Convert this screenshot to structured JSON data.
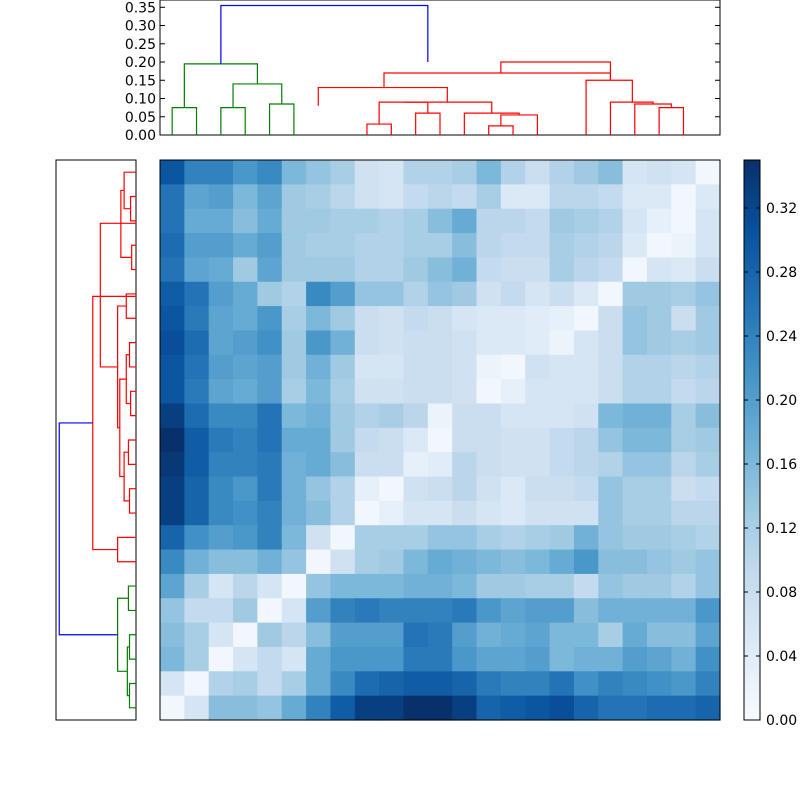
{
  "chart_data": [
    {
      "type": "dendrogram",
      "orientation": "top",
      "ylim": [
        0,
        0.37
      ],
      "yticks": [
        "0.00",
        "0.05",
        "0.10",
        "0.15",
        "0.20",
        "0.25",
        "0.30",
        "0.35"
      ],
      "leaves": 23,
      "colors": {
        "left_cluster": "#008000",
        "right_cluster": "#ff0000",
        "root": "#0000ff"
      },
      "links": [
        {
          "l": 0.5,
          "r": 1.5,
          "hl": 0,
          "hr": 0,
          "h": 0.075,
          "c": "green"
        },
        {
          "l": 2.5,
          "r": 3.5,
          "hl": 0,
          "hr": 0,
          "h": 0.075,
          "c": "green"
        },
        {
          "l": 4.5,
          "r": 5.5,
          "hl": 0,
          "hr": 0,
          "h": 0.085,
          "c": "green"
        },
        {
          "l": 3.0,
          "r": 5.0,
          "hl": 0.075,
          "hr": 0.085,
          "h": 0.14,
          "c": "green"
        },
        {
          "l": 1.0,
          "r": 4.0,
          "hl": 0.075,
          "hr": 0.14,
          "h": 0.195,
          "c": "green"
        },
        {
          "l": 8.5,
          "r": 9.5,
          "hl": 0,
          "hr": 0,
          "h": 0.03,
          "c": "red"
        },
        {
          "l": 10.5,
          "r": 11.5,
          "hl": 0,
          "hr": 0,
          "h": 0.06,
          "c": "red"
        },
        {
          "l": 9.0,
          "r": 11.0,
          "hl": 0.03,
          "hr": 0.06,
          "h": 0.09,
          "c": "red"
        },
        {
          "l": 13.5,
          "r": 14.5,
          "hl": 0,
          "hr": 0,
          "h": 0.025,
          "c": "red"
        },
        {
          "l": 14.0,
          "r": 15.5,
          "hl": 0.025,
          "hr": 0,
          "h": 0.055,
          "c": "red"
        },
        {
          "l": 12.5,
          "r": 14.75,
          "hl": 0,
          "hr": 0.055,
          "h": 0.06,
          "c": "red"
        },
        {
          "l": 10.0,
          "r": 13.625,
          "hl": 0.09,
          "hr": 0.06,
          "h": 0.09,
          "c": "red"
        },
        {
          "l": 6.5,
          "r": 11.8,
          "hl": 0.08,
          "hr": 0.09,
          "h": 0.13,
          "c": "red"
        },
        {
          "l": 20.5,
          "r": 21.5,
          "hl": 0,
          "hr": 0,
          "h": 0.075,
          "c": "red"
        },
        {
          "l": 19.5,
          "r": 21.0,
          "hl": 0,
          "hr": 0.075,
          "h": 0.085,
          "c": "red"
        },
        {
          "l": 18.5,
          "r": 20.25,
          "hl": 0,
          "hr": 0.085,
          "h": 0.09,
          "c": "red"
        },
        {
          "l": 17.5,
          "r": 19.4,
          "hl": 0,
          "hr": 0.09,
          "h": 0.15,
          "c": "red"
        },
        {
          "l": 9.2,
          "r": 18.5,
          "hl": 0.13,
          "hr": 0.15,
          "h": 0.17,
          "c": "red"
        },
        {
          "l": 14.0,
          "r": 18.5,
          "hl": 0.17,
          "hr": 0.15,
          "h": 0.2,
          "c": "red"
        },
        {
          "l": 2.5,
          "r": 11.0,
          "hl": 0.195,
          "hr": 0.2,
          "h": 0.355,
          "c": "blue"
        }
      ]
    },
    {
      "type": "dendrogram",
      "orientation": "left",
      "leaves": 23,
      "links": [
        {
          "a": 0.5,
          "b": 1.5,
          "h": 0.03,
          "c": "green"
        },
        {
          "a": 2.5,
          "b": 3.5,
          "h": 0.03,
          "c": "green"
        },
        {
          "a": 1.0,
          "b": 3.0,
          "h": 0.04,
          "c": "green"
        },
        {
          "a": 4.5,
          "b": 5.5,
          "h": 0.035,
          "c": "green"
        },
        {
          "a": 2.0,
          "b": 5.0,
          "h": 0.085,
          "c": "green"
        },
        {
          "a": 6.5,
          "b": 7.5,
          "h": 0.085,
          "c": "red"
        },
        {
          "a": 8.5,
          "b": 9.5,
          "h": 0.03,
          "c": "red"
        },
        {
          "a": 10.5,
          "b": 11.5,
          "h": 0.035,
          "c": "red"
        },
        {
          "a": 9.0,
          "b": 11.0,
          "h": 0.055,
          "c": "red"
        },
        {
          "a": 12.5,
          "b": 13.5,
          "h": 0.025,
          "c": "red"
        },
        {
          "a": 14.5,
          "b": 15.5,
          "h": 0.03,
          "c": "red"
        },
        {
          "a": 13.0,
          "b": 15.0,
          "h": 0.045,
          "c": "red"
        },
        {
          "a": 10.0,
          "b": 14.0,
          "h": 0.075,
          "c": "red"
        },
        {
          "a": 16.5,
          "b": 17.5,
          "h": 0.045,
          "c": "red"
        },
        {
          "a": 12.0,
          "b": 17.0,
          "h": 0.085,
          "c": "red"
        },
        {
          "a": 18.5,
          "b": 19.5,
          "h": 0.02,
          "c": "red"
        },
        {
          "a": 20.5,
          "b": 21.5,
          "h": 0.025,
          "c": "red"
        },
        {
          "a": 21.0,
          "b": 22.5,
          "h": 0.055,
          "c": "red"
        },
        {
          "a": 19.0,
          "b": 21.75,
          "h": 0.07,
          "c": "red"
        },
        {
          "a": 14.5,
          "b": 20.4,
          "h": 0.165,
          "c": "red"
        },
        {
          "a": 7.0,
          "b": 17.4,
          "h": 0.2,
          "c": "red"
        },
        {
          "a": 3.5,
          "b": 12.2,
          "h": 0.355,
          "c": "blue"
        }
      ]
    },
    {
      "type": "heatmap",
      "rows": 23,
      "cols": 23,
      "colormap": "Blues",
      "vmin": 0,
      "vmax": 0.35,
      "values": [
        [
          0.3,
          0.24,
          0.24,
          0.21,
          0.23,
          0.16,
          0.14,
          0.12,
          0.07,
          0.06,
          0.11,
          0.11,
          0.12,
          0.16,
          0.11,
          0.08,
          0.11,
          0.13,
          0.15,
          0.06,
          0.07,
          0.06,
          0.01
        ],
        [
          0.26,
          0.19,
          0.2,
          0.16,
          0.19,
          0.13,
          0.12,
          0.1,
          0.07,
          0.06,
          0.09,
          0.1,
          0.09,
          0.12,
          0.05,
          0.05,
          0.1,
          0.1,
          0.09,
          0.05,
          0.05,
          0.01,
          0.05
        ],
        [
          0.26,
          0.18,
          0.18,
          0.15,
          0.18,
          0.13,
          0.13,
          0.12,
          0.12,
          0.11,
          0.12,
          0.15,
          0.18,
          0.1,
          0.1,
          0.09,
          0.13,
          0.12,
          0.11,
          0.06,
          0.03,
          0.01,
          0.06
        ],
        [
          0.27,
          0.2,
          0.2,
          0.18,
          0.2,
          0.13,
          0.12,
          0.12,
          0.11,
          0.11,
          0.12,
          0.12,
          0.15,
          0.1,
          0.09,
          0.09,
          0.12,
          0.11,
          0.1,
          0.05,
          0.01,
          0.02,
          0.06
        ],
        [
          0.26,
          0.19,
          0.18,
          0.13,
          0.19,
          0.13,
          0.13,
          0.13,
          0.11,
          0.11,
          0.13,
          0.15,
          0.17,
          0.09,
          0.08,
          0.08,
          0.12,
          0.1,
          0.09,
          0.01,
          0.06,
          0.05,
          0.08
        ],
        [
          0.29,
          0.26,
          0.2,
          0.18,
          0.13,
          0.11,
          0.23,
          0.2,
          0.14,
          0.14,
          0.11,
          0.14,
          0.13,
          0.07,
          0.09,
          0.06,
          0.08,
          0.05,
          0.01,
          0.13,
          0.13,
          0.12,
          0.14
        ],
        [
          0.3,
          0.25,
          0.19,
          0.18,
          0.21,
          0.12,
          0.16,
          0.13,
          0.08,
          0.07,
          0.09,
          0.08,
          0.06,
          0.05,
          0.05,
          0.04,
          0.03,
          0.01,
          0.08,
          0.14,
          0.13,
          0.08,
          0.13
        ],
        [
          0.31,
          0.27,
          0.19,
          0.2,
          0.22,
          0.13,
          0.21,
          0.17,
          0.08,
          0.07,
          0.08,
          0.08,
          0.07,
          0.05,
          0.05,
          0.04,
          0.02,
          0.06,
          0.08,
          0.14,
          0.13,
          0.12,
          0.13
        ],
        [
          0.3,
          0.26,
          0.2,
          0.19,
          0.2,
          0.13,
          0.17,
          0.13,
          0.06,
          0.06,
          0.08,
          0.08,
          0.07,
          0.02,
          0.01,
          0.07,
          0.06,
          0.06,
          0.08,
          0.11,
          0.11,
          0.1,
          0.11
        ],
        [
          0.3,
          0.25,
          0.19,
          0.18,
          0.2,
          0.12,
          0.16,
          0.12,
          0.07,
          0.07,
          0.08,
          0.08,
          0.07,
          0.01,
          0.03,
          0.06,
          0.06,
          0.06,
          0.08,
          0.11,
          0.11,
          0.09,
          0.1
        ],
        [
          0.33,
          0.27,
          0.23,
          0.23,
          0.26,
          0.16,
          0.17,
          0.13,
          0.11,
          0.12,
          0.1,
          0.02,
          0.08,
          0.08,
          0.06,
          0.06,
          0.06,
          0.07,
          0.16,
          0.17,
          0.17,
          0.12,
          0.15
        ],
        [
          0.35,
          0.29,
          0.25,
          0.24,
          0.26,
          0.18,
          0.18,
          0.13,
          0.09,
          0.08,
          0.05,
          0.01,
          0.08,
          0.08,
          0.07,
          0.07,
          0.09,
          0.1,
          0.14,
          0.16,
          0.16,
          0.12,
          0.13
        ],
        [
          0.34,
          0.29,
          0.24,
          0.24,
          0.25,
          0.17,
          0.18,
          0.15,
          0.08,
          0.08,
          0.03,
          0.04,
          0.1,
          0.08,
          0.07,
          0.07,
          0.09,
          0.1,
          0.11,
          0.14,
          0.14,
          0.1,
          0.12
        ],
        [
          0.33,
          0.28,
          0.23,
          0.21,
          0.25,
          0.17,
          0.14,
          0.11,
          0.03,
          0.01,
          0.07,
          0.08,
          0.1,
          0.07,
          0.05,
          0.08,
          0.08,
          0.09,
          0.14,
          0.12,
          0.12,
          0.08,
          0.09
        ],
        [
          0.33,
          0.28,
          0.23,
          0.22,
          0.24,
          0.17,
          0.15,
          0.11,
          0.01,
          0.03,
          0.06,
          0.06,
          0.08,
          0.06,
          0.05,
          0.07,
          0.07,
          0.07,
          0.14,
          0.12,
          0.12,
          0.1,
          0.1
        ],
        [
          0.28,
          0.22,
          0.2,
          0.21,
          0.24,
          0.16,
          0.07,
          0.01,
          0.12,
          0.12,
          0.12,
          0.14,
          0.14,
          0.12,
          0.11,
          0.12,
          0.13,
          0.17,
          0.14,
          0.13,
          0.13,
          0.12,
          0.11
        ],
        [
          0.23,
          0.17,
          0.15,
          0.15,
          0.17,
          0.14,
          0.01,
          0.07,
          0.12,
          0.13,
          0.16,
          0.18,
          0.17,
          0.16,
          0.15,
          0.16,
          0.18,
          0.21,
          0.15,
          0.15,
          0.14,
          0.13,
          0.14
        ],
        [
          0.19,
          0.12,
          0.06,
          0.1,
          0.06,
          0.01,
          0.14,
          0.16,
          0.16,
          0.16,
          0.17,
          0.17,
          0.16,
          0.13,
          0.13,
          0.12,
          0.12,
          0.09,
          0.14,
          0.13,
          0.13,
          0.11,
          0.14
        ],
        [
          0.14,
          0.09,
          0.09,
          0.13,
          0.01,
          0.06,
          0.2,
          0.24,
          0.25,
          0.24,
          0.24,
          0.24,
          0.25,
          0.21,
          0.19,
          0.2,
          0.2,
          0.15,
          0.17,
          0.17,
          0.17,
          0.17,
          0.21
        ],
        [
          0.15,
          0.12,
          0.06,
          0.01,
          0.13,
          0.1,
          0.15,
          0.2,
          0.2,
          0.2,
          0.26,
          0.25,
          0.2,
          0.17,
          0.18,
          0.19,
          0.16,
          0.16,
          0.12,
          0.18,
          0.15,
          0.15,
          0.19
        ],
        [
          0.16,
          0.12,
          0.01,
          0.06,
          0.09,
          0.06,
          0.18,
          0.21,
          0.21,
          0.21,
          0.25,
          0.25,
          0.21,
          0.19,
          0.19,
          0.2,
          0.16,
          0.17,
          0.17,
          0.2,
          0.19,
          0.17,
          0.22
        ],
        [
          0.06,
          0.01,
          0.11,
          0.12,
          0.09,
          0.12,
          0.18,
          0.23,
          0.27,
          0.28,
          0.29,
          0.29,
          0.28,
          0.25,
          0.24,
          0.24,
          0.26,
          0.22,
          0.24,
          0.23,
          0.22,
          0.21,
          0.24
        ],
        [
          0.01,
          0.06,
          0.15,
          0.15,
          0.14,
          0.18,
          0.24,
          0.29,
          0.33,
          0.33,
          0.35,
          0.35,
          0.33,
          0.28,
          0.29,
          0.3,
          0.31,
          0.28,
          0.26,
          0.26,
          0.27,
          0.27,
          0.28
        ]
      ]
    },
    {
      "type": "colorbar",
      "colormap": "Blues",
      "vmin": 0,
      "vmax": 0.35,
      "ticks": [
        "0.00",
        "0.04",
        "0.08",
        "0.12",
        "0.16",
        "0.20",
        "0.24",
        "0.28",
        "0.32"
      ]
    }
  ]
}
